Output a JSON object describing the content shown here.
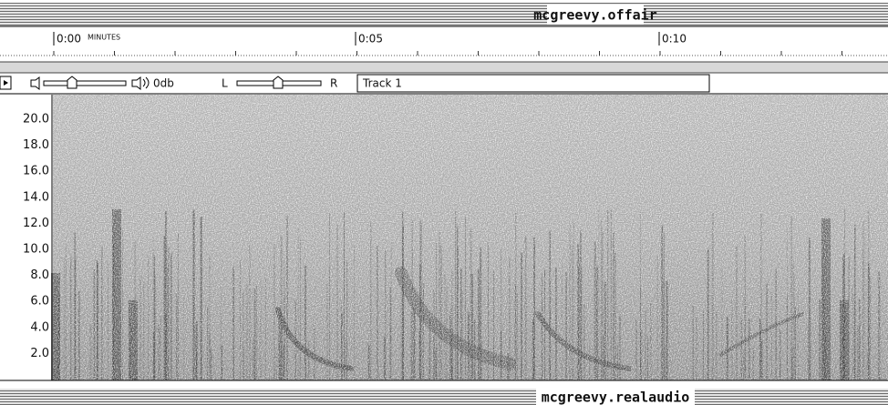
{
  "windows": [
    {
      "title": "mcgreevy.offair"
    },
    {
      "title": "mcgreevy.realaudio"
    }
  ],
  "ruler": {
    "labels": [
      "0:00",
      "0:05",
      "0:10"
    ],
    "unit": "MINUTES"
  },
  "controls": {
    "volume": "0db",
    "left": "L",
    "right": "R",
    "track": "Track 1"
  },
  "frequency_labels": [
    "20.0",
    "18.0",
    "16.0",
    "14.0",
    "12.0",
    "10.0",
    "8.0",
    "6.0",
    "4.0",
    "2.0"
  ]
}
